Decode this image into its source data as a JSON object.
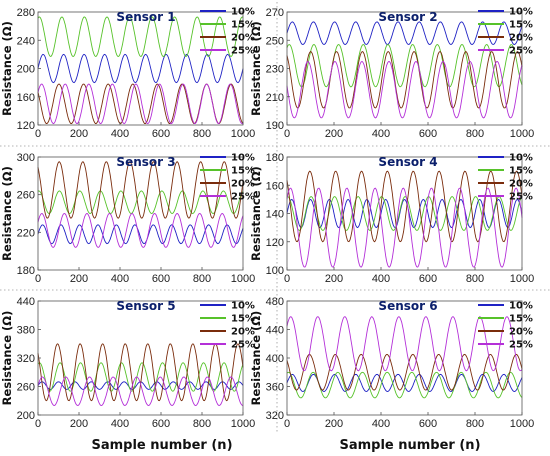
{
  "figure": {
    "xlabel_left": "Sample number (n)",
    "xlabel_right": "Sample number (n)"
  },
  "legend_labels": [
    "10%",
    "15%",
    "20%",
    "25%"
  ],
  "colors": [
    "#1f22c4",
    "#57c22a",
    "#7a2c0c",
    "#b430d8"
  ],
  "chart_data": [
    {
      "type": "line",
      "title": "Sensor 1",
      "xlabel": "",
      "ylabel": "Resistance (Ω)",
      "xlim": [
        0,
        1000
      ],
      "ylim": [
        120,
        280
      ],
      "xticks": [
        0,
        200,
        400,
        600,
        800,
        1000
      ],
      "yticks": [
        120,
        160,
        200,
        240,
        280
      ],
      "legend": "right",
      "grid": false,
      "series": [
        {
          "name": "10%",
          "mean": 200,
          "amp": 20,
          "period": 100,
          "phase": 0.0,
          "xmax": 1000
        },
        {
          "name": "15%",
          "mean": 245,
          "amp": 28,
          "period": 110,
          "phase": 1.2,
          "xmax": 1000
        },
        {
          "name": "20%",
          "mean": 150,
          "amp": 28,
          "period": 120,
          "phase": 2.5,
          "xmax": 1000
        },
        {
          "name": "25%",
          "mean": 150,
          "amp": 28,
          "period": 115,
          "phase": 0.6,
          "xmax": 1000
        }
      ]
    },
    {
      "type": "line",
      "title": "Sensor 2",
      "xlabel": "",
      "ylabel": "Resistance (Ω)",
      "xlim": [
        0,
        1000
      ],
      "ylim": [
        190,
        270
      ],
      "xticks": [
        0,
        200,
        400,
        600,
        800,
        1000
      ],
      "yticks": [
        190,
        210,
        230,
        250,
        270
      ],
      "legend": "right",
      "grid": false,
      "series": [
        {
          "name": "10%",
          "mean": 255,
          "amp": 8,
          "period": 90,
          "phase": 0.0,
          "xmax": 1000
        },
        {
          "name": "15%",
          "mean": 232,
          "amp": 15,
          "period": 105,
          "phase": 1.0,
          "xmax": 1000
        },
        {
          "name": "20%",
          "mean": 222,
          "amp": 20,
          "period": 110,
          "phase": 2.1,
          "xmax": 1000
        },
        {
          "name": "25%",
          "mean": 215,
          "amp": 20,
          "period": 115,
          "phase": 3.0,
          "xmax": 1000
        }
      ]
    },
    {
      "type": "line",
      "title": "Sensor 3",
      "xlabel": "",
      "ylabel": "Resistance (Ω)",
      "xlim": [
        0,
        1000
      ],
      "ylim": [
        180,
        300
      ],
      "xticks": [
        0,
        200,
        400,
        600,
        800,
        1000
      ],
      "yticks": [
        180,
        220,
        260,
        300
      ],
      "legend": "right",
      "grid": false,
      "series": [
        {
          "name": "10%",
          "mean": 218,
          "amp": 10,
          "period": 90,
          "phase": 0.0,
          "xmax": 1000
        },
        {
          "name": "15%",
          "mean": 252,
          "amp": 12,
          "period": 100,
          "phase": 1.3,
          "xmax": 1000
        },
        {
          "name": "20%",
          "mean": 265,
          "amp": 30,
          "period": 115,
          "phase": 2.2,
          "xmax": 1000
        },
        {
          "name": "25%",
          "mean": 222,
          "amp": 18,
          "period": 110,
          "phase": 0.5,
          "xmax": 1000
        }
      ]
    },
    {
      "type": "line",
      "title": "Sensor 4",
      "xlabel": "",
      "ylabel": "Resistance (Ω)",
      "xlim": [
        0,
        1000
      ],
      "ylim": [
        100,
        180
      ],
      "xticks": [
        0,
        200,
        400,
        600,
        800,
        1000
      ],
      "yticks": [
        100,
        120,
        140,
        160,
        180
      ],
      "legend": "right",
      "grid": false,
      "series": [
        {
          "name": "10%",
          "mean": 140,
          "amp": 10,
          "period": 80,
          "phase": 0.0,
          "xmax": 1000
        },
        {
          "name": "15%",
          "mean": 140,
          "amp": 12,
          "period": 100,
          "phase": 1.4,
          "xmax": 1000
        },
        {
          "name": "20%",
          "mean": 145,
          "amp": 25,
          "period": 110,
          "phase": 2.3,
          "xmax": 1000
        },
        {
          "name": "25%",
          "mean": 130,
          "amp": 28,
          "period": 120,
          "phase": 0.8,
          "xmax": 1000
        }
      ]
    },
    {
      "type": "line",
      "title": "Sensor 5",
      "xlabel": "",
      "ylabel": "Resistance (Ω)",
      "xlim": [
        0,
        1000
      ],
      "ylim": [
        200,
        440
      ],
      "xticks": [
        0,
        200,
        400,
        600,
        800,
        1000
      ],
      "yticks": [
        200,
        260,
        320,
        380,
        440
      ],
      "legend": "right",
      "grid": false,
      "series": [
        {
          "name": "10%",
          "mean": 262,
          "amp": 8,
          "period": 80,
          "phase": 0.0,
          "xmax": 1000
        },
        {
          "name": "15%",
          "mean": 280,
          "amp": 30,
          "period": 100,
          "phase": 1.1,
          "xmax": 1000
        },
        {
          "name": "20%",
          "mean": 290,
          "amp": 60,
          "period": 110,
          "phase": 2.4,
          "xmax": 1000
        },
        {
          "name": "25%",
          "mean": 250,
          "amp": 30,
          "period": 115,
          "phase": 0.4,
          "xmax": 1000
        }
      ]
    },
    {
      "type": "line",
      "title": "Sensor 6",
      "xlabel": "",
      "ylabel": "Resistance (Ω)",
      "xlim": [
        0,
        1000
      ],
      "ylim": [
        320,
        480
      ],
      "xticks": [
        0,
        200,
        400,
        600,
        800,
        1000
      ],
      "yticks": [
        320,
        360,
        400,
        440,
        480
      ],
      "legend": "right",
      "grid": false,
      "series": [
        {
          "name": "10%",
          "mean": 365,
          "amp": 12,
          "period": 90,
          "phase": 0.0,
          "xmax": 1000
        },
        {
          "name": "15%",
          "mean": 362,
          "amp": 18,
          "period": 105,
          "phase": 1.2,
          "xmax": 1000
        },
        {
          "name": "20%",
          "mean": 380,
          "amp": 25,
          "period": 110,
          "phase": 2.4,
          "xmax": 1000
        },
        {
          "name": "25%",
          "mean": 420,
          "amp": 38,
          "period": 115,
          "phase": 0.7,
          "xmax": 1000
        }
      ]
    }
  ]
}
